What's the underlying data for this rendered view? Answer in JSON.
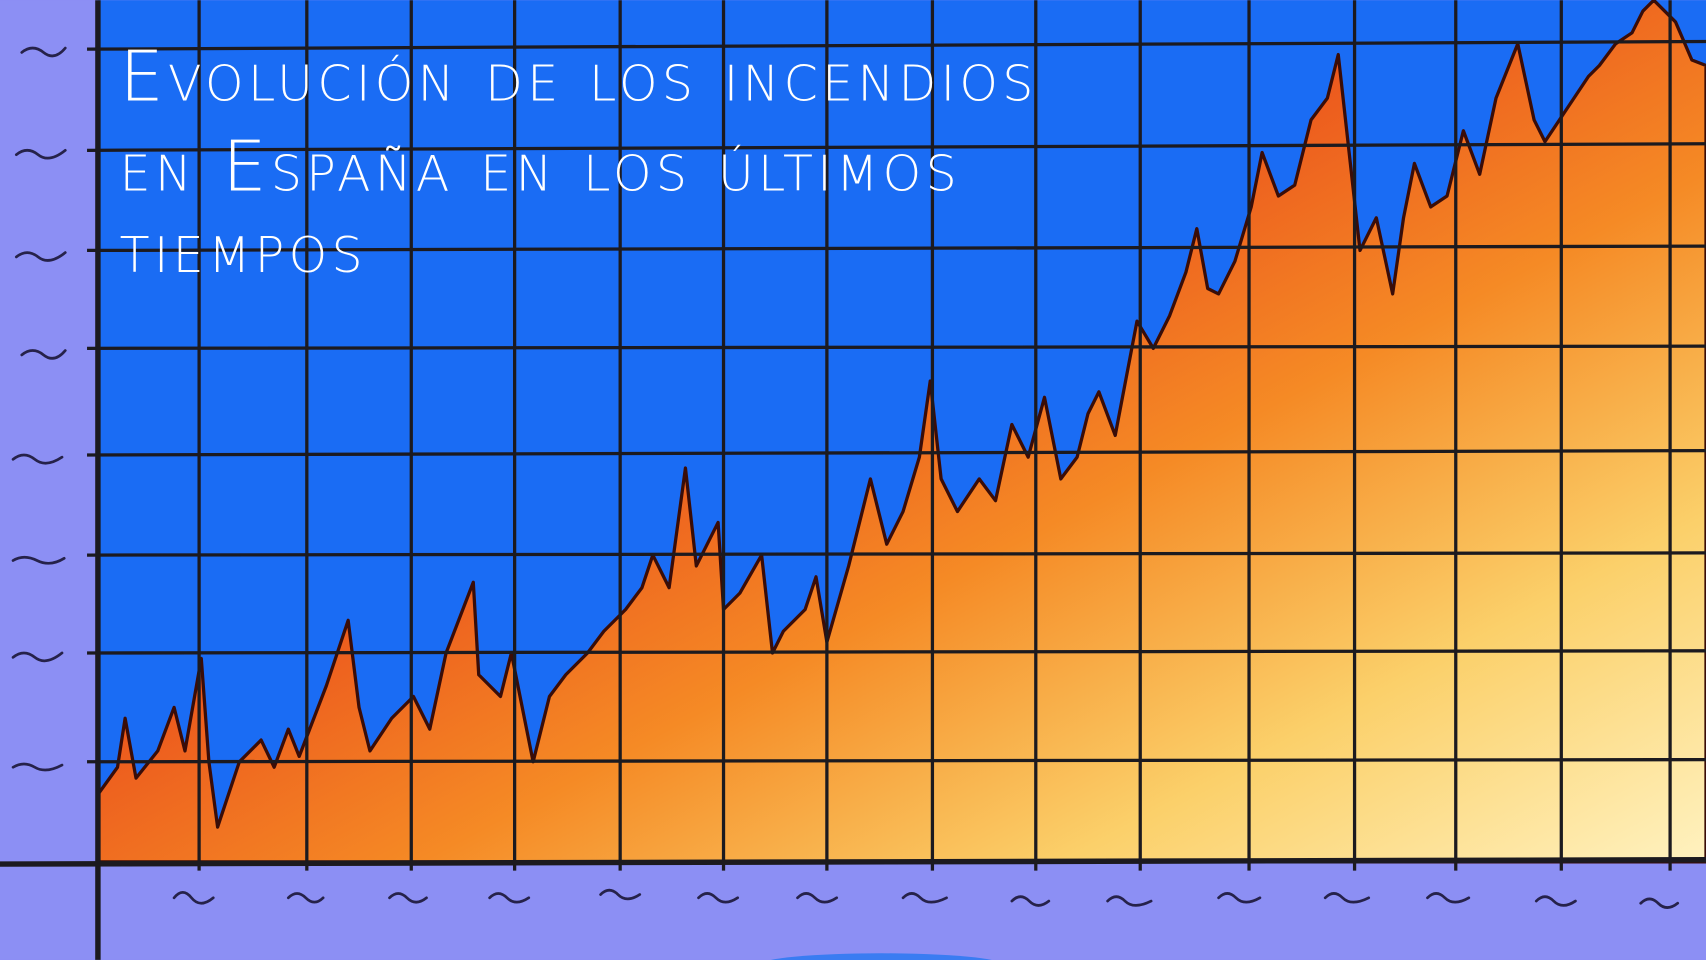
{
  "illustration": {
    "title_lines": [
      "Evolución de los incendios",
      "en España en los últimos",
      "tiempos"
    ]
  }
}
